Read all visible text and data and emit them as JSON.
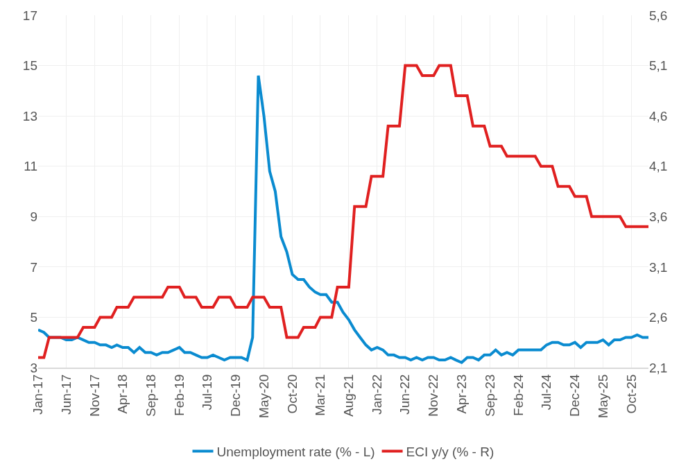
{
  "chart_data": {
    "type": "line",
    "x": [
      "2017-01",
      "2017-02",
      "2017-03",
      "2017-04",
      "2017-05",
      "2017-06",
      "2017-07",
      "2017-08",
      "2017-09",
      "2017-10",
      "2017-11",
      "2017-12",
      "2018-01",
      "2018-02",
      "2018-03",
      "2018-04",
      "2018-05",
      "2018-06",
      "2018-07",
      "2018-08",
      "2018-09",
      "2018-10",
      "2018-11",
      "2018-12",
      "2019-01",
      "2019-02",
      "2019-03",
      "2019-04",
      "2019-05",
      "2019-06",
      "2019-07",
      "2019-08",
      "2019-09",
      "2019-10",
      "2019-11",
      "2019-12",
      "2020-01",
      "2020-02",
      "2020-03",
      "2020-04",
      "2020-05",
      "2020-06",
      "2020-07",
      "2020-08",
      "2020-09",
      "2020-10",
      "2020-11",
      "2020-12",
      "2021-01",
      "2021-02",
      "2021-03",
      "2021-04",
      "2021-05",
      "2021-06",
      "2021-07",
      "2021-08",
      "2021-09",
      "2021-10",
      "2021-11",
      "2021-12",
      "2022-01",
      "2022-02",
      "2022-03",
      "2022-04",
      "2022-05",
      "2022-06",
      "2022-07",
      "2022-08",
      "2022-09",
      "2022-10",
      "2022-11",
      "2022-12",
      "2023-01",
      "2023-02",
      "2023-03",
      "2023-04",
      "2023-05",
      "2023-06",
      "2023-07",
      "2023-08",
      "2023-09",
      "2023-10",
      "2023-11",
      "2023-12",
      "2024-01",
      "2024-02",
      "2024-03",
      "2024-04",
      "2024-05",
      "2024-06",
      "2024-07",
      "2024-08",
      "2024-09",
      "2024-10",
      "2024-11",
      "2024-12",
      "2025-01",
      "2025-02",
      "2025-03",
      "2025-04",
      "2025-05",
      "2025-06",
      "2025-07",
      "2025-08",
      "2025-09",
      "2025-10",
      "2025-11",
      "2025-12",
      "2026-01"
    ],
    "series": [
      {
        "name": "Unemployment rate (% - L)",
        "color": "#0a8bd0",
        "values": [
          4.5,
          4.4,
          4.2,
          4.2,
          4.2,
          4.1,
          4.1,
          4.2,
          4.1,
          4.0,
          4.0,
          3.9,
          3.9,
          3.8,
          3.9,
          3.8,
          3.8,
          3.6,
          3.8,
          3.6,
          3.6,
          3.5,
          3.6,
          3.6,
          3.7,
          3.8,
          3.6,
          3.6,
          3.5,
          3.4,
          3.4,
          3.5,
          3.4,
          3.3,
          3.4,
          3.4,
          3.4,
          3.3,
          4.2,
          14.6,
          13.0,
          10.8,
          10.0,
          8.2,
          7.6,
          6.7,
          6.5,
          6.5,
          6.2,
          6.0,
          5.9,
          5.9,
          5.6,
          5.6,
          5.2,
          4.9,
          4.5,
          4.2,
          3.9,
          3.7,
          3.8,
          3.7,
          3.5,
          3.5,
          3.4,
          3.4,
          3.3,
          3.4,
          3.3,
          3.4,
          3.4,
          3.3,
          3.3,
          3.4,
          3.3,
          3.2,
          3.4,
          3.4,
          3.3,
          3.5,
          3.5,
          3.7,
          3.5,
          3.6,
          3.5,
          3.7,
          3.7,
          3.7,
          3.7,
          3.7,
          3.9,
          4.0,
          4.0,
          3.9,
          3.9,
          4.0,
          3.8,
          4.0,
          4.0,
          4.0,
          4.1,
          3.9,
          4.1,
          4.1,
          4.2,
          4.2,
          4.3,
          4.2,
          4.2
        ]
      },
      {
        "name": "ECI y/y (% - R)",
        "color": "#e02020",
        "axis": "y2",
        "values": [
          2.2,
          2.2,
          2.4,
          2.4,
          2.4,
          2.4,
          2.4,
          2.4,
          2.5,
          2.5,
          2.5,
          2.6,
          2.6,
          2.6,
          2.7,
          2.7,
          2.7,
          2.8,
          2.8,
          2.8,
          2.8,
          2.8,
          2.8,
          2.9,
          2.9,
          2.9,
          2.8,
          2.8,
          2.8,
          2.7,
          2.7,
          2.7,
          2.8,
          2.8,
          2.8,
          2.7,
          2.7,
          2.7,
          2.8,
          2.8,
          2.8,
          2.7,
          2.7,
          2.7,
          2.4,
          2.4,
          2.4,
          2.5,
          2.5,
          2.5,
          2.6,
          2.6,
          2.6,
          2.9,
          2.9,
          2.9,
          3.7,
          3.7,
          3.7,
          4.0,
          4.0,
          4.0,
          4.5,
          4.5,
          4.5,
          5.1,
          5.1,
          5.1,
          5.0,
          5.0,
          5.0,
          5.1,
          5.1,
          5.1,
          4.8,
          4.8,
          4.8,
          4.5,
          4.5,
          4.5,
          4.3,
          4.3,
          4.3,
          4.2,
          4.2,
          4.2,
          4.2,
          4.2,
          4.2,
          4.1,
          4.1,
          4.1,
          3.9,
          3.9,
          3.9,
          3.8,
          3.8,
          3.8,
          3.6,
          3.6,
          3.6,
          3.6,
          3.6,
          3.6,
          3.5,
          3.5,
          3.5,
          3.5,
          3.5
        ]
      }
    ],
    "xlim": [
      "2017-01",
      "2026-01"
    ],
    "xticks": [
      {
        "value": "2017-01",
        "label": "Jan-17"
      },
      {
        "value": "2017-06",
        "label": "Jun-17"
      },
      {
        "value": "2017-11",
        "label": "Nov-17"
      },
      {
        "value": "2018-04",
        "label": "Apr-18"
      },
      {
        "value": "2018-09",
        "label": "Sep-18"
      },
      {
        "value": "2019-02",
        "label": "Feb-19"
      },
      {
        "value": "2019-07",
        "label": "Jul-19"
      },
      {
        "value": "2019-12",
        "label": "Dec-19"
      },
      {
        "value": "2020-05",
        "label": "May-20"
      },
      {
        "value": "2020-10",
        "label": "Oct-20"
      },
      {
        "value": "2021-03",
        "label": "Mar-21"
      },
      {
        "value": "2021-08",
        "label": "Aug-21"
      },
      {
        "value": "2022-01",
        "label": "Jan-22"
      },
      {
        "value": "2022-06",
        "label": "Jun-22"
      },
      {
        "value": "2022-11",
        "label": "Nov-22"
      },
      {
        "value": "2023-04",
        "label": "Apr-23"
      },
      {
        "value": "2023-09",
        "label": "Sep-23"
      },
      {
        "value": "2024-02",
        "label": "Feb-24"
      },
      {
        "value": "2024-07",
        "label": "Jul-24"
      },
      {
        "value": "2024-12",
        "label": "Dec-24"
      },
      {
        "value": "2025-05",
        "label": "May-25"
      },
      {
        "value": "2025-10",
        "label": "Oct-25"
      }
    ],
    "ylim": [
      3,
      17
    ],
    "yticks": [
      3,
      5,
      7,
      9,
      11,
      13,
      15,
      17
    ],
    "y2lim": [
      2.1,
      5.6
    ],
    "y2ticks": [
      {
        "value": 2.1,
        "label": "2,1"
      },
      {
        "value": 2.6,
        "label": "2,6"
      },
      {
        "value": 3.1,
        "label": "3,1"
      },
      {
        "value": 3.6,
        "label": "3,6"
      },
      {
        "value": 4.1,
        "label": "4,1"
      },
      {
        "value": 4.6,
        "label": "4,6"
      },
      {
        "value": 5.1,
        "label": "5,1"
      },
      {
        "value": 5.6,
        "label": "5,6"
      }
    ],
    "grid": true,
    "legend": "bottom",
    "marker": "none",
    "line_style": "solid"
  }
}
